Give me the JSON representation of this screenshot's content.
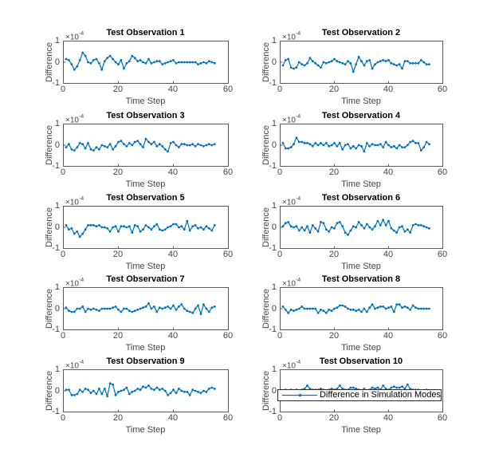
{
  "figure": {
    "background": "#ffffff",
    "kind": "matlab-figure"
  },
  "style": {
    "line_color": "#0072BD",
    "axis_color": "#5a5a5a",
    "text_color": "#454545",
    "title_color": "#000000",
    "legend_border": "#2b2b2b"
  },
  "chart_data": [
    {
      "type": "line",
      "title": "Test Observation 1",
      "xlabel": "Time Step",
      "ylabel": "Difference",
      "y_exponent_base": "×10",
      "y_exponent_power": "-4",
      "xlim": [
        0,
        60
      ],
      "ylim": [
        -1,
        1
      ],
      "xticks": [
        "0",
        "20",
        "40",
        "60"
      ],
      "yticks": [
        "1",
        "0",
        "-1"
      ],
      "x_start": 1,
      "values_unit": "1e-4",
      "values": [
        0.15,
        0.1,
        -0.1,
        -0.35,
        -0.2,
        0.1,
        0.45,
        0.3,
        0,
        -0.05,
        0.1,
        0.15,
        -0.05,
        -0.35,
        0.05,
        0.2,
        0.3,
        0.15,
        0,
        -0.1,
        0.1,
        -0.3,
        -0.05,
        0.05,
        0.3,
        0.2,
        0.05,
        0.1,
        0,
        -0.05,
        0.15,
        -0.05,
        0,
        0.05,
        0.05,
        -0.1,
        -0.05,
        0,
        0.05,
        0.1,
        -0.05,
        0,
        0,
        0,
        0,
        0,
        0,
        0,
        -0.1,
        -0.05,
        0,
        -0.05,
        0.05,
        0,
        -0.05
      ]
    },
    {
      "type": "line",
      "title": "Test Observation 2",
      "xlabel": "Time Step",
      "ylabel": "Difference",
      "y_exponent_base": "×10",
      "y_exponent_power": "-4",
      "xlim": [
        0,
        60
      ],
      "ylim": [
        -1,
        1
      ],
      "xticks": [
        "0",
        "20",
        "40",
        "60"
      ],
      "yticks": [
        "1",
        "0",
        "-1"
      ],
      "x_start": 1,
      "values_unit": "1e-4",
      "values": [
        -0.15,
        0.1,
        0.15,
        -0.25,
        -0.3,
        -0.25,
        0,
        -0.1,
        -0.15,
        -0.05,
        0.2,
        0.05,
        -0.05,
        -0.15,
        -0.25,
        0,
        -0.05,
        0,
        0.05,
        0.15,
        0.05,
        0,
        -0.05,
        -0.1,
        0.05,
        -0.05,
        -0.45,
        -0.1,
        0.25,
        0.05,
        -0.15,
        0.05,
        0.1,
        -0.3,
        -0.1,
        0,
        0.05,
        0.1,
        0.05,
        0.1,
        -0.05,
        -0.1,
        -0.15,
        -0.1,
        -0.3,
        0.05,
        0.05,
        -0.05,
        -0.05,
        -0.05,
        -0.05,
        0.1,
        0,
        -0.1,
        -0.1
      ]
    },
    {
      "type": "line",
      "title": "Test Observation 3",
      "xlabel": "Time Step",
      "ylabel": "Difference",
      "y_exponent_base": "×10",
      "y_exponent_power": "-4",
      "xlim": [
        0,
        60
      ],
      "ylim": [
        -1,
        1
      ],
      "xticks": [
        "0",
        "20",
        "40",
        "60"
      ],
      "yticks": [
        "1",
        "0",
        "-1"
      ],
      "x_start": 1,
      "values_unit": "1e-4",
      "values": [
        -0.1,
        0.05,
        -0.2,
        -0.25,
        -0.1,
        0.1,
        0.05,
        -0.15,
        0.1,
        -0.2,
        -0.25,
        -0.1,
        -0.2,
        0,
        -0.05,
        -0.1,
        0.05,
        -0.2,
        -0.05,
        0.15,
        0.2,
        0.05,
        -0.05,
        0.1,
        0,
        0.15,
        0.2,
        0.05,
        -0.1,
        0.3,
        0.15,
        0.05,
        0.15,
        -0.05,
        0.05,
        -0.05,
        -0.2,
        -0.3,
        0.1,
        0.15,
        0,
        -0.1,
        0.05,
        0.05,
        0,
        0,
        0.05,
        -0.05,
        0.05,
        0,
        -0.05,
        0,
        0.05,
        0,
        0.05
      ]
    },
    {
      "type": "line",
      "title": "Test Observation 4",
      "xlabel": "Time Step",
      "ylabel": "Difference",
      "y_exponent_base": "×10",
      "y_exponent_power": "-4",
      "xlim": [
        0,
        60
      ],
      "ylim": [
        -1,
        1
      ],
      "xticks": [
        "0",
        "20",
        "40",
        "60"
      ],
      "yticks": [
        "1",
        "0",
        "-1"
      ],
      "x_start": 1,
      "values_unit": "1e-4",
      "values": [
        0.1,
        -0.15,
        -0.15,
        -0.1,
        0.05,
        0.35,
        0.15,
        0.15,
        0.1,
        0.1,
        0.05,
        -0.05,
        0.1,
        0,
        0.1,
        0,
        0.1,
        -0.05,
        0,
        0.1,
        -0.05,
        0.1,
        -0.2,
        0,
        0.05,
        -0.15,
        -0.05,
        -0.15,
        0,
        -0.05,
        -0.3,
        0.1,
        -0.05,
        0.05,
        0,
        0,
        0.05,
        -0.1,
        0.15,
        0,
        -0.1,
        -0.05,
        -0.15,
        0,
        -0.1,
        -0.1,
        0,
        0.15,
        0.2,
        0.1,
        0.1,
        -0.25,
        -0.1,
        0.15,
        0.05
      ]
    },
    {
      "type": "line",
      "title": "Test Observation 5",
      "xlabel": "Time Step",
      "ylabel": "Difference",
      "y_exponent_base": "×10",
      "y_exponent_power": "-4",
      "xlim": [
        0,
        60
      ],
      "ylim": [
        -1,
        1
      ],
      "xticks": [
        "0",
        "20",
        "40",
        "60"
      ],
      "yticks": [
        "1",
        "0",
        "-1"
      ],
      "x_start": 1,
      "values_unit": "1e-4",
      "values": [
        0.1,
        -0.1,
        -0.05,
        -0.3,
        -0.2,
        -0.45,
        -0.3,
        -0.1,
        0.1,
        0.1,
        0.1,
        0.05,
        0.1,
        0,
        0,
        -0.05,
        -0.2,
        0,
        0.05,
        -0.2,
        0.05,
        0.05,
        0,
        0.05,
        -0.25,
        0.1,
        0.05,
        -0.2,
        -0.1,
        0.1,
        0,
        -0.1,
        0.05,
        0.15,
        -0.1,
        -0.15,
        -0.1,
        0,
        0.05,
        0.15,
        0.15,
        0,
        0.05,
        -0.1,
        0.3,
        -0.15,
        0.05,
        0.1,
        -0.05,
        0,
        -0.1,
        0.05,
        -0.05,
        -0.15,
        0.1
      ]
    },
    {
      "type": "line",
      "title": "Test Observation 6",
      "xlabel": "Time Step",
      "ylabel": "Difference",
      "y_exponent_base": "×10",
      "y_exponent_power": "-4",
      "xlim": [
        0,
        60
      ],
      "ylim": [
        -1,
        1
      ],
      "xticks": [
        "0",
        "20",
        "40",
        "60"
      ],
      "yticks": [
        "1",
        "0",
        "-1"
      ],
      "x_start": 1,
      "values_unit": "1e-4",
      "values": [
        0.05,
        0.2,
        0.25,
        0.05,
        0,
        0.05,
        -0.15,
        0,
        -0.15,
        0.05,
        -0.25,
        0.1,
        -0.05,
        -0.2,
        0.25,
        0.2,
        -0.1,
        -0.2,
        0,
        -0.05,
        0.2,
        0.25,
        0.05,
        -0.25,
        -0.35,
        -0.15,
        0.05,
        0,
        0.25,
        0.1,
        -0.05,
        0.15,
        0,
        -0.1,
        0.05,
        0.3,
        0.1,
        0.35,
        0.1,
        0.3,
        -0.05,
        -0.15,
        -0.25,
        0,
        0.05,
        -0.2,
        -0.1,
        -0.25,
        0.1,
        0.15,
        0.1,
        0.1,
        0.05,
        0,
        -0.05
      ]
    },
    {
      "type": "line",
      "title": "Test Observation 7",
      "xlabel": "Time Step",
      "ylabel": "Difference",
      "y_exponent_base": "×10",
      "y_exponent_power": "-4",
      "xlim": [
        0,
        60
      ],
      "ylim": [
        -1,
        1
      ],
      "xticks": [
        "0",
        "20",
        "40",
        "60"
      ],
      "yticks": [
        "1",
        "0",
        "-1"
      ],
      "x_start": 1,
      "values_unit": "1e-4",
      "values": [
        0.05,
        -0.1,
        -0.15,
        -0.15,
        0,
        0,
        0.1,
        -0.15,
        0,
        -0.05,
        0,
        -0.05,
        -0.1,
        0,
        0,
        0,
        0,
        0.05,
        0.1,
        -0.05,
        -0.15,
        0,
        0,
        -0.1,
        -0.15,
        -0.1,
        -0.05,
        0,
        0.05,
        0.1,
        0.25,
        0,
        0.1,
        -0.15,
        0.05,
        0,
        0.05,
        0.1,
        0,
        0.15,
        -0.05,
        0.1,
        0.2,
        0,
        -0.1,
        -0.15,
        -0.2,
        0,
        0.15,
        -0.25,
        0.2,
        0,
        -0.15,
        0.05,
        0.1
      ]
    },
    {
      "type": "line",
      "title": "Test Observation 8",
      "xlabel": "Time Step",
      "ylabel": "Difference",
      "y_exponent_base": "×10",
      "y_exponent_power": "-4",
      "xlim": [
        0,
        60
      ],
      "ylim": [
        -1,
        1
      ],
      "xticks": [
        "0",
        "20",
        "40",
        "60"
      ],
      "yticks": [
        "1",
        "0",
        "-1"
      ],
      "x_start": 1,
      "values_unit": "1e-4",
      "values": [
        0.1,
        -0.05,
        -0.2,
        -0.05,
        -0.1,
        -0.05,
        0,
        0.1,
        0,
        0,
        0,
        0,
        0,
        -0.2,
        -0.05,
        -0.1,
        -0.2,
        -0.05,
        -0.1,
        0,
        0.05,
        0.15,
        0.15,
        0.1,
        0,
        -0.05,
        -0.05,
        -0.1,
        -0.05,
        -0.15,
        0,
        -0.15,
        0.05,
        0.2,
        0,
        0.05,
        0.1,
        0.1,
        0,
        0.05,
        0.1,
        -0.15,
        0.2,
        0.2,
        0.05,
        0.1,
        0.05,
        -0.05,
        0.15,
        0.05,
        0,
        0,
        0,
        0,
        0
      ]
    },
    {
      "type": "line",
      "title": "Test Observation 9",
      "xlabel": "Time Step",
      "ylabel": "Difference",
      "y_exponent_base": "×10",
      "y_exponent_power": "-4",
      "xlim": [
        0,
        60
      ],
      "ylim": [
        -1,
        1
      ],
      "xticks": [
        "0",
        "20",
        "40",
        "60"
      ],
      "yticks": [
        "1",
        "0",
        "-1"
      ],
      "x_start": 1,
      "values_unit": "1e-4",
      "values": [
        0.05,
        0.05,
        -0.2,
        -0.2,
        -0.15,
        0.05,
        -0.05,
        0.1,
        0.05,
        -0.1,
        0,
        -0.15,
        0.1,
        -0.15,
        0.1,
        -0.25,
        0.35,
        0.3,
        -0.2,
        -0.05,
        0,
        0.05,
        0.15,
        -0.15,
        -0.05,
        0,
        0.1,
        0.05,
        0.2,
        0.15,
        0.25,
        0.1,
        0.05,
        0.15,
        0.05,
        0.1,
        0,
        -0.2,
        -0.1,
        0.05,
        -0.1,
        0.1,
        0,
        -0.05,
        -0.05,
        -0.2,
        0.05,
        0,
        -0.05,
        -0.1,
        0,
        -0.05,
        0.1,
        0.15,
        0.1
      ]
    },
    {
      "type": "line",
      "title": "Test Observation 10",
      "xlabel": "Time Step",
      "ylabel": "Difference",
      "y_exponent_base": "×10",
      "y_exponent_power": "-4",
      "xlim": [
        0,
        60
      ],
      "ylim": [
        -1,
        1
      ],
      "xticks": [
        "0",
        "20",
        "40",
        "60"
      ],
      "yticks": [
        "1",
        "0",
        "-1"
      ],
      "x_start": 1,
      "values_unit": "1e-4",
      "legend_label": "Difference in Simulation Modes",
      "legend_position": "southwest-inside",
      "values": [
        0,
        0.05,
        -0.05,
        0.05,
        0,
        0.05,
        0,
        0.05,
        0.1,
        0.25,
        0.1,
        0.05,
        0.05,
        0.05,
        0.1,
        0.05,
        0,
        0.05,
        0.1,
        0.05,
        0.1,
        0.25,
        0.1,
        0.05,
        0.05,
        0.15,
        0.15,
        0.1,
        0.05,
        0,
        0.1,
        0,
        0.05,
        0.15,
        0.1,
        0.15,
        0.05,
        0.25,
        0.1,
        0.05,
        0.15,
        0.2,
        0.15,
        0.15,
        0.2,
        0.1,
        0.3,
        0.1,
        0.05,
        0.05,
        0.05,
        0,
        0,
        0.05,
        0
      ]
    }
  ]
}
